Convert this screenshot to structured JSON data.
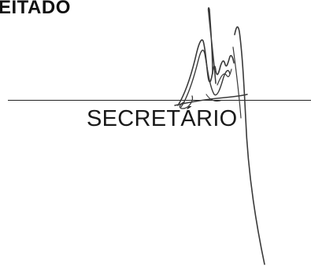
{
  "heading": {
    "text": "EITADO"
  },
  "signature_block": {
    "role_label": "SECRETÁRIO",
    "signature_icon": "handwritten-signature",
    "ink_color": "#3a3a3a"
  }
}
